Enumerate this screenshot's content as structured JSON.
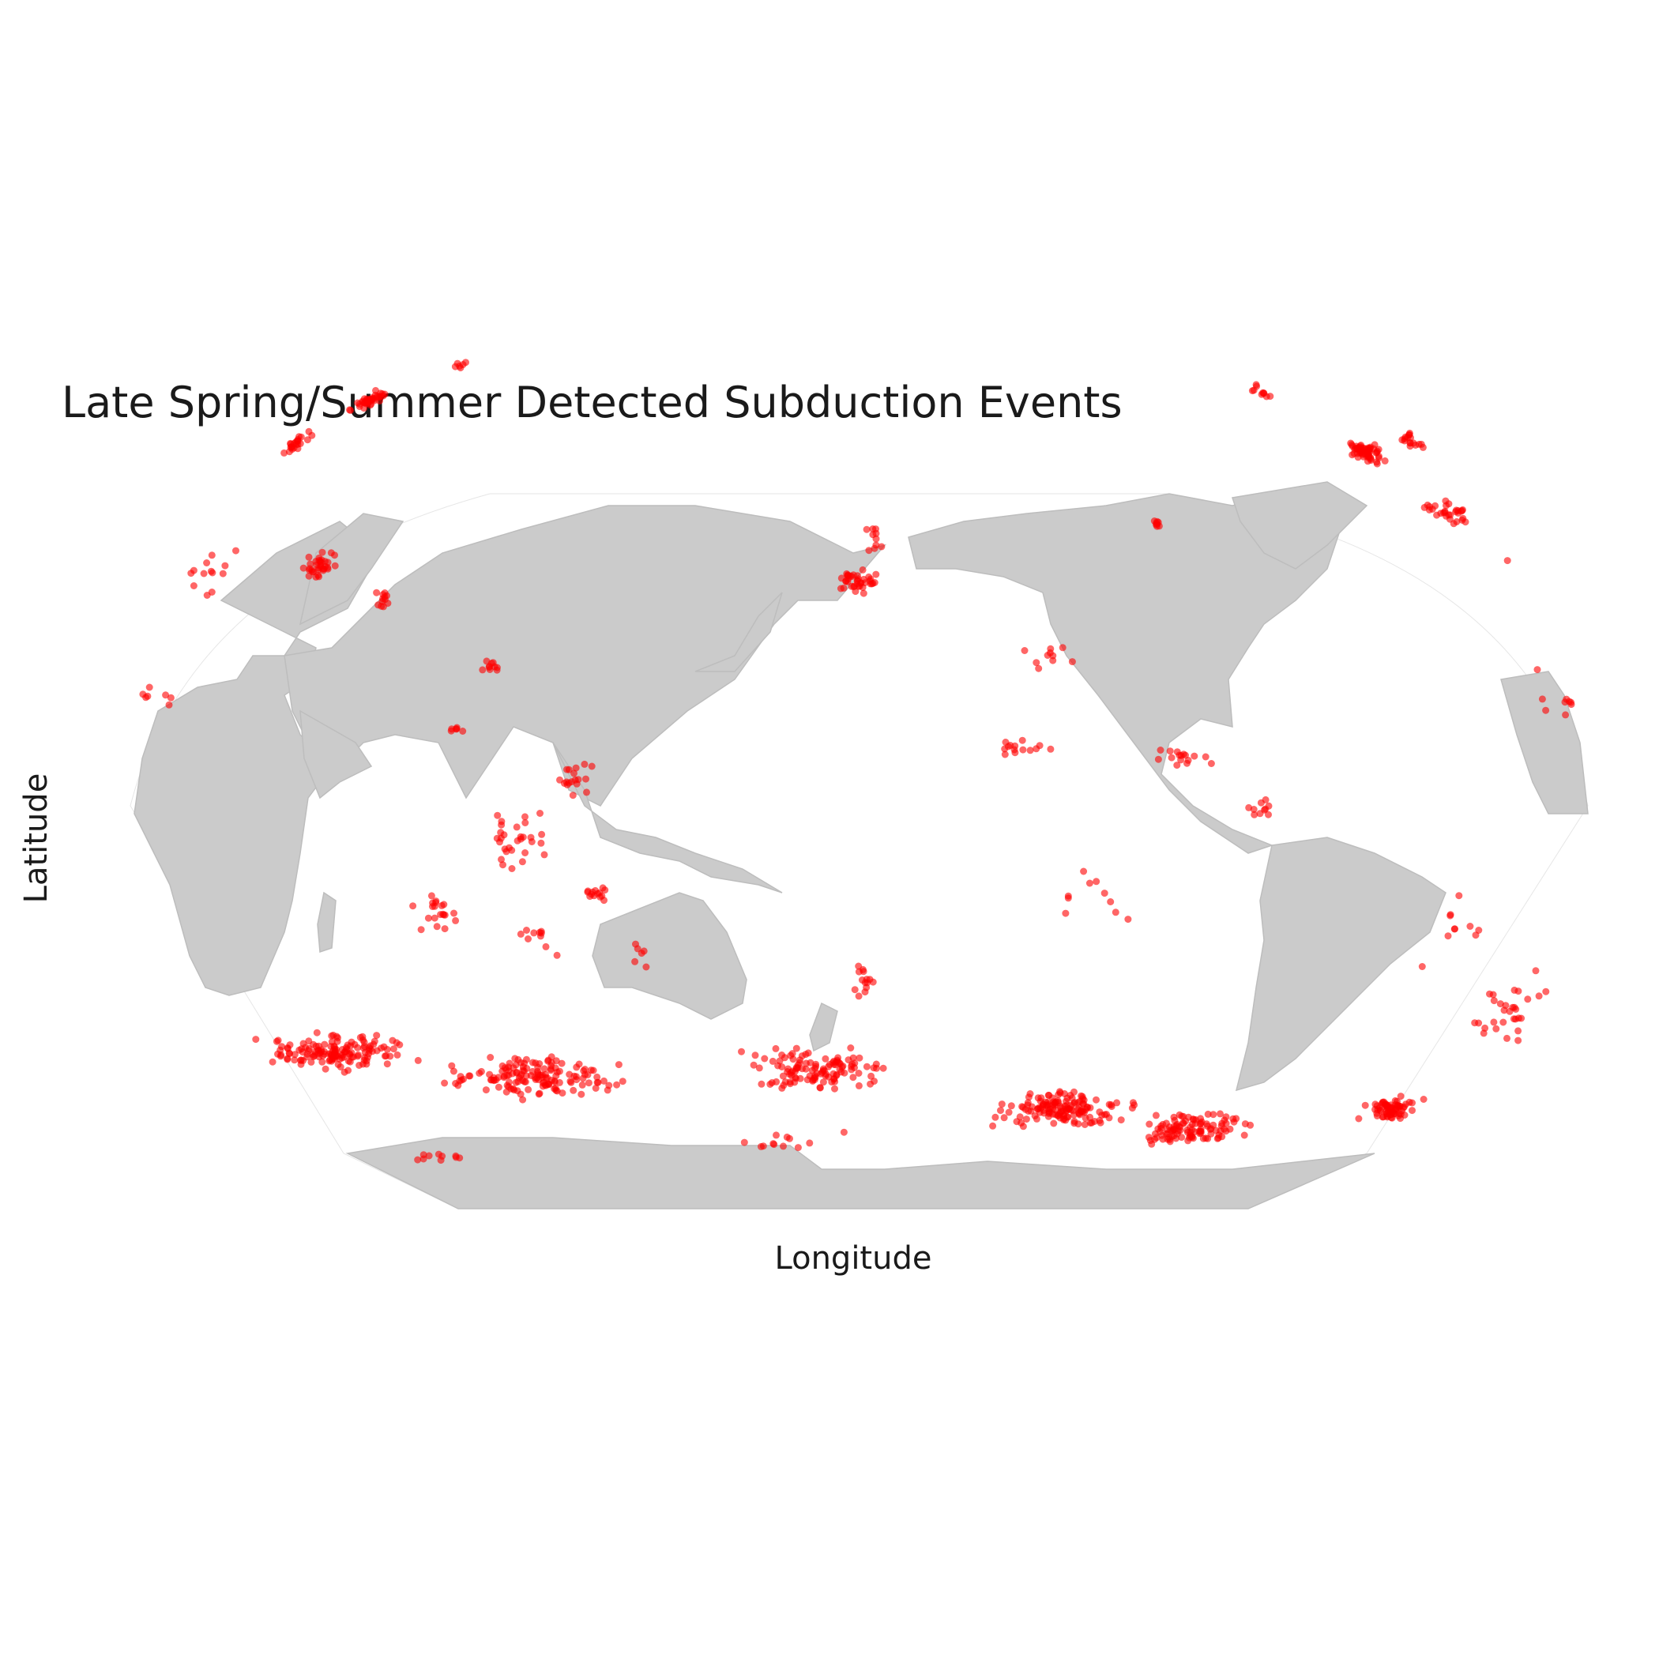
{
  "chart_data": {
    "type": "scatter",
    "title": "Late Spring/Summer Detected Subduction Events",
    "xlabel": "Longitude",
    "ylabel": "Latitude",
    "projection": "robinson",
    "central_longitude": 150,
    "basemap": "grey-land",
    "marker_color": "#ff0000",
    "clusters": [
      {
        "lon": -20,
        "lat": 71,
        "spread": [
          8,
          3
        ],
        "n": 40
      },
      {
        "lon": -5,
        "lat": 79,
        "spread": [
          3,
          1
        ],
        "n": 6
      },
      {
        "lon": 5,
        "lat": 41,
        "spread": [
          5,
          3
        ],
        "n": 35
      },
      {
        "lon": 26,
        "lat": 35,
        "spread": [
          4,
          2
        ],
        "n": 12
      },
      {
        "lon": 58,
        "lat": 23,
        "spread": [
          4,
          2
        ],
        "n": 10
      },
      {
        "lon": 50,
        "lat": 13,
        "spread": [
          3,
          1
        ],
        "n": 6
      },
      {
        "lon": 80,
        "lat": 5,
        "spread": [
          6,
          4
        ],
        "n": 18
      },
      {
        "lon": 65,
        "lat": -5,
        "spread": [
          10,
          6
        ],
        "n": 30
      },
      {
        "lon": 45,
        "lat": -18,
        "spread": [
          8,
          5
        ],
        "n": 20
      },
      {
        "lon": 85,
        "lat": -15,
        "spread": [
          4,
          2
        ],
        "n": 14
      },
      {
        "lon": 70,
        "lat": -22,
        "spread": [
          8,
          4
        ],
        "n": 10
      },
      {
        "lon": 95,
        "lat": -25,
        "spread": [
          4,
          3
        ],
        "n": 6
      },
      {
        "lon": -50,
        "lat": 61,
        "spread": [
          6,
          3
        ],
        "n": 60
      },
      {
        "lon": -30,
        "lat": 63,
        "spread": [
          7,
          3
        ],
        "n": 40
      },
      {
        "lon": -65,
        "lat": 73,
        "spread": [
          4,
          2
        ],
        "n": 10
      },
      {
        "lon": -40,
        "lat": 50,
        "spread": [
          8,
          3
        ],
        "n": 30
      },
      {
        "lon": -25,
        "lat": 40,
        "spread": [
          10,
          5
        ],
        "n": 14
      },
      {
        "lon": -30,
        "lat": 18,
        "spread": [
          14,
          6
        ],
        "n": 16
      },
      {
        "lon": -125,
        "lat": 48,
        "spread": [
          1,
          1
        ],
        "n": 8
      },
      {
        "lon": 150,
        "lat": 38,
        "spread": [
          8,
          3
        ],
        "n": 40
      },
      {
        "lon": 155,
        "lat": 45,
        "spread": [
          4,
          3
        ],
        "n": 10
      },
      {
        "lon": -170,
        "lat": 10,
        "spread": [
          12,
          3
        ],
        "n": 14
      },
      {
        "lon": -130,
        "lat": 8,
        "spread": [
          10,
          2
        ],
        "n": 16
      },
      {
        "lon": -110,
        "lat": 0,
        "spread": [
          5,
          3
        ],
        "n": 10
      },
      {
        "lon": -160,
        "lat": 25,
        "spread": [
          12,
          5
        ],
        "n": 10
      },
      {
        "lon": -150,
        "lat": -15,
        "spread": [
          15,
          8
        ],
        "n": 10
      },
      {
        "lon": 152,
        "lat": -30,
        "spread": [
          4,
          4
        ],
        "n": 14
      },
      {
        "lon": 10,
        "lat": -42,
        "spread": [
          25,
          4
        ],
        "n": 150
      },
      {
        "lon": 60,
        "lat": -46,
        "spread": [
          30,
          5
        ],
        "n": 150
      },
      {
        "lon": 140,
        "lat": -45,
        "spread": [
          25,
          5
        ],
        "n": 120
      },
      {
        "lon": -150,
        "lat": -52,
        "spread": [
          25,
          4
        ],
        "n": 150
      },
      {
        "lon": -110,
        "lat": -55,
        "spread": [
          20,
          4
        ],
        "n": 110
      },
      {
        "lon": -55,
        "lat": -52,
        "spread": [
          10,
          3
        ],
        "n": 70
      },
      {
        "lon": -40,
        "lat": -35,
        "spread": [
          12,
          8
        ],
        "n": 30
      },
      {
        "lon": -60,
        "lat": -20,
        "spread": [
          10,
          10
        ],
        "n": 10
      },
      {
        "lon": 20,
        "lat": -60,
        "spread": [
          10,
          2
        ],
        "n": 10
      },
      {
        "lon": 130,
        "lat": -58,
        "spread": [
          20,
          3
        ],
        "n": 12
      }
    ]
  }
}
